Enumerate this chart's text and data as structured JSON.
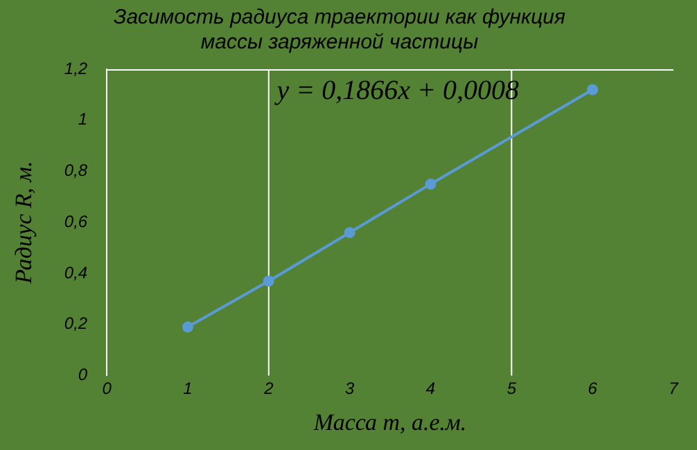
{
  "chart_data": {
    "type": "line",
    "title": "Засимость радиуса траектории как функция массы заряженной частицы",
    "xlabel": "Масса m, а.е.м.",
    "ylabel": "Радиус R, м.",
    "x": [
      1,
      2,
      3,
      4,
      6
    ],
    "series": [
      {
        "color": "#5b9bd5",
        "values": [
          0.19,
          0.37,
          0.56,
          0.75,
          1.12
        ]
      }
    ],
    "xlim": [
      0,
      7
    ],
    "xticks": [
      0,
      1,
      2,
      3,
      4,
      5,
      6,
      7
    ],
    "ylim": [
      0,
      1.2
    ],
    "yticks": [
      {
        "value": 0,
        "label": "0"
      },
      {
        "value": 0.2,
        "label": "0,2"
      },
      {
        "value": 0.4,
        "label": "0,4"
      },
      {
        "value": 0.6,
        "label": "0,6"
      },
      {
        "value": 0.8,
        "label": "0,8"
      },
      {
        "value": 1,
        "label": "1"
      },
      {
        "value": 1.2,
        "label": "1,2"
      }
    ],
    "ref_lines": [
      {
        "axis": "x",
        "value": 2,
        "color": "#ffffff"
      },
      {
        "axis": "x",
        "value": 5,
        "color": "#ffffff"
      }
    ],
    "annotations": [
      "y = 0,1866x + 0,0008"
    ],
    "marker": "circle",
    "grid": false,
    "legend": false
  }
}
